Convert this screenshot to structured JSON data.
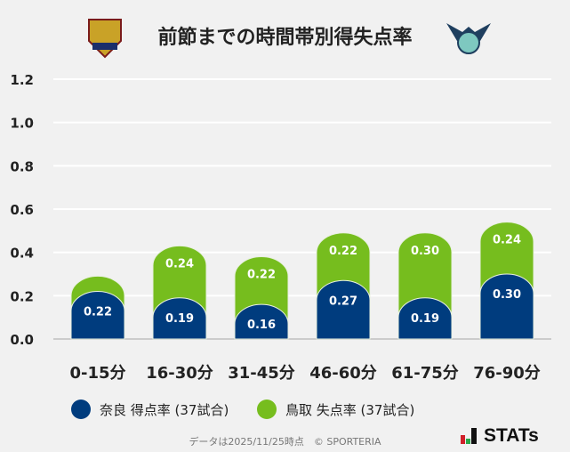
{
  "header": {
    "title": "前節までの時間帯別得失点率"
  },
  "chart_data": {
    "type": "bar",
    "stacked": true,
    "title": "前節までの時間帯別得失点率",
    "categories": [
      "0-15分",
      "16-30分",
      "31-45分",
      "46-60分",
      "61-75分",
      "76-90分"
    ],
    "series": [
      {
        "name": "奈良 得点率 (37試合)",
        "color": "#003c7e",
        "values": [
          0.22,
          0.19,
          0.16,
          0.27,
          0.19,
          0.3
        ],
        "labels": [
          "0.22",
          "0.19",
          "0.16",
          "0.27",
          "0.19",
          "0.30"
        ]
      },
      {
        "name": "鳥取 失点率 (37試合)",
        "color": "#76bd1e",
        "values": [
          0.07,
          0.24,
          0.22,
          0.22,
          0.3,
          0.24
        ],
        "labels": [
          "",
          "0.24",
          "0.22",
          "0.22",
          "0.30",
          "0.24"
        ]
      }
    ],
    "yticks": [
      "0.0",
      "0.2",
      "0.4",
      "0.6",
      "0.8",
      "1.0",
      "1.2"
    ],
    "ylim": [
      0,
      1.2
    ],
    "grid": true,
    "legend_position": "bottom"
  },
  "footer": {
    "note": "データは2025/11/25時点　© SPORTERIA",
    "brand": "STATs"
  }
}
